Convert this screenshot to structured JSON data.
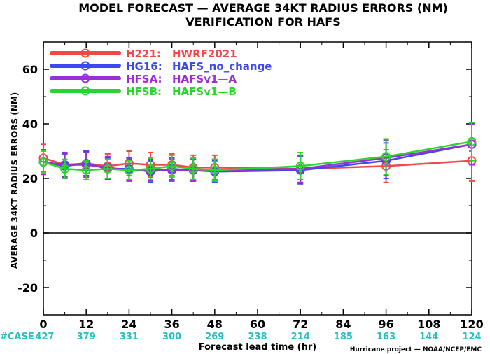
{
  "chart_data": {
    "type": "line",
    "title": "MODEL FORECAST — AVERAGE 34KT RADIUS ERRORS (NM)",
    "subtitle": "VERIFICATION FOR HAFS",
    "xlabel": "Forecast lead time (hr)",
    "ylabel": "AVERAGE 34KT RADIUS ERRORS (NM)",
    "credit": "Hurricane project — NOAA/NCEP/EMC",
    "xlim": [
      0,
      120
    ],
    "ylim": [
      -30,
      70
    ],
    "grid": false,
    "legend_position": "top-left",
    "x_ticks": [
      "0",
      "12",
      "24",
      "36",
      "48",
      "60",
      "72",
      "84",
      "96",
      "108",
      "120"
    ],
    "y_ticks": [
      "-20",
      "0",
      "20",
      "40",
      "60"
    ],
    "case_label": "#CASE",
    "cases": [
      "427",
      "379",
      "331",
      "300",
      "269",
      "238",
      "214",
      "185",
      "163",
      "144",
      "124"
    ],
    "x": [
      0,
      6,
      12,
      18,
      24,
      30,
      36,
      42,
      48,
      72,
      96,
      120
    ],
    "series": [
      {
        "name": "H221:",
        "model": "HWRF2021",
        "color": "#f04848",
        "values": [
          27.5,
          25.0,
          25.5,
          24.5,
          25.5,
          25.0,
          25.0,
          24.0,
          24.0,
          23.5,
          24.5,
          26.5
        ],
        "errors": [
          5.0,
          4.5,
          4.5,
          4.5,
          4.5,
          4.5,
          4.0,
          4.5,
          4.5,
          5.0,
          6.0,
          7.5
        ]
      },
      {
        "name": "HG16:",
        "model": "HAFS_no_change",
        "color": "#3f48f0",
        "values": [
          26.0,
          24.5,
          25.5,
          23.5,
          23.5,
          22.5,
          23.5,
          23.0,
          22.5,
          23.0,
          26.5,
          32.5
        ],
        "errors": [
          4.5,
          4.5,
          4.5,
          4.0,
          4.0,
          4.0,
          4.0,
          4.0,
          4.0,
          5.0,
          6.5,
          7.5
        ]
      },
      {
        "name": "HFSA:",
        "model": "HAFSv1—A",
        "color": "#9b2fd6",
        "values": [
          26.0,
          25.0,
          25.0,
          24.0,
          23.0,
          23.0,
          23.0,
          23.0,
          23.0,
          23.5,
          27.5,
          32.5
        ],
        "errors": [
          4.5,
          4.5,
          4.5,
          4.0,
          4.0,
          4.0,
          4.0,
          4.0,
          4.0,
          5.0,
          6.5,
          7.5
        ]
      },
      {
        "name": "HFSB:",
        "model": "HAFSv1—B",
        "color": "#29d62b",
        "values": [
          26.0,
          23.5,
          23.0,
          23.5,
          23.0,
          23.5,
          24.5,
          23.5,
          23.0,
          24.5,
          28.0,
          33.5
        ],
        "errors": [
          4.0,
          3.5,
          3.5,
          3.5,
          3.5,
          4.0,
          4.0,
          4.0,
          4.0,
          5.0,
          6.5,
          7.0
        ]
      }
    ]
  }
}
